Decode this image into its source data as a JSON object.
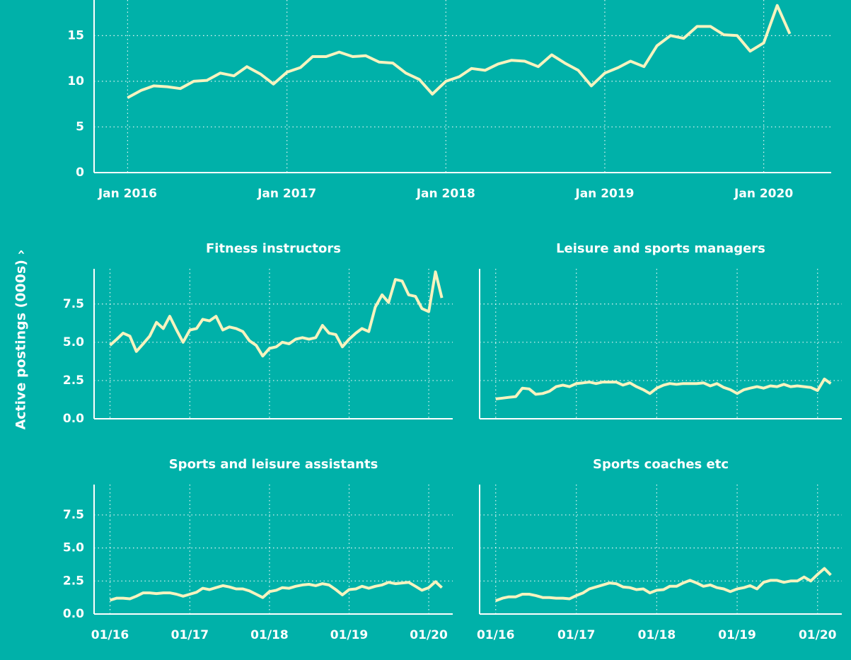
{
  "ylabel": "Active postings (000s) ›",
  "chart_data": [
    {
      "type": "line",
      "xlim": [
        "2015-10-16",
        "2020-06-04"
      ],
      "ylim": [
        0,
        18.9
      ],
      "yticks": [
        0,
        5,
        10,
        15
      ],
      "xticks": [
        {
          "value": "2016-01",
          "label": "Jan 2016"
        },
        {
          "value": "2017-01",
          "label": "Jan 2017"
        },
        {
          "value": "2018-01",
          "label": "Jan 2018"
        },
        {
          "value": "2019-01",
          "label": "Jan 2019"
        },
        {
          "value": "2020-01",
          "label": "Jan 2020"
        }
      ],
      "grid": true,
      "color": "#f6f3bf",
      "x": [
        "2016-01",
        "2016-02",
        "2016-03",
        "2016-04",
        "2016-05",
        "2016-06",
        "2016-07",
        "2016-08",
        "2016-09",
        "2016-10",
        "2016-11",
        "2016-12",
        "2017-01",
        "2017-02",
        "2017-03",
        "2017-04",
        "2017-05",
        "2017-06",
        "2017-07",
        "2017-08",
        "2017-09",
        "2017-10",
        "2017-11",
        "2017-12",
        "2018-01",
        "2018-02",
        "2018-03",
        "2018-04",
        "2018-05",
        "2018-06",
        "2018-07",
        "2018-08",
        "2018-09",
        "2018-10",
        "2018-11",
        "2018-12",
        "2019-01",
        "2019-02",
        "2019-03",
        "2019-04",
        "2019-05",
        "2019-06",
        "2019-07",
        "2019-08",
        "2019-09",
        "2019-10",
        "2019-11",
        "2019-12",
        "2020-01",
        "2020-02",
        "2020-03"
      ],
      "values": [
        8.2,
        9.0,
        9.5,
        9.4,
        9.2,
        10.0,
        10.1,
        10.9,
        10.6,
        11.6,
        10.8,
        9.7,
        11.0,
        11.5,
        12.7,
        12.7,
        13.2,
        12.7,
        12.8,
        12.1,
        12.0,
        10.9,
        10.2,
        8.6,
        10.0,
        10.5,
        11.4,
        11.2,
        11.9,
        12.3,
        12.2,
        11.6,
        12.9,
        12.0,
        11.2,
        9.5,
        10.9,
        11.5,
        12.2,
        11.6,
        13.9,
        15.0,
        14.7,
        16.0,
        16.0,
        15.1,
        15.0,
        13.3,
        14.2,
        18.3,
        15.2
      ]
    },
    {
      "type": "line",
      "title": "Fitness instructors",
      "xlim": [
        "2015-10-20",
        "2020-04-20"
      ],
      "ylim": [
        0,
        9.8
      ],
      "yticks": [
        {
          "value": 0,
          "label": "0.0"
        },
        2.5,
        {
          "value": 5,
          "label": "5.0"
        },
        7.5
      ],
      "xticks": [
        "2016-01",
        "2017-01",
        "2018-01",
        "2019-01",
        "2020-01"
      ],
      "xtick_labels": false,
      "grid": true,
      "color": "#f6f3bf",
      "x": [
        "2016-01",
        "2016-02",
        "2016-03",
        "2016-04",
        "2016-05",
        "2016-06",
        "2016-07",
        "2016-08",
        "2016-09",
        "2016-10",
        "2016-11",
        "2016-12",
        "2017-01",
        "2017-02",
        "2017-03",
        "2017-04",
        "2017-05",
        "2017-06",
        "2017-07",
        "2017-08",
        "2017-09",
        "2017-10",
        "2017-11",
        "2017-12",
        "2018-01",
        "2018-02",
        "2018-03",
        "2018-04",
        "2018-05",
        "2018-06",
        "2018-07",
        "2018-08",
        "2018-09",
        "2018-10",
        "2018-11",
        "2018-12",
        "2019-01",
        "2019-02",
        "2019-03",
        "2019-04",
        "2019-05",
        "2019-06",
        "2019-07",
        "2019-08",
        "2019-09",
        "2019-10",
        "2019-11",
        "2019-12",
        "2020-01",
        "2020-02",
        "2020-03"
      ],
      "values": [
        4.8,
        5.2,
        5.6,
        5.4,
        4.4,
        4.9,
        5.4,
        6.3,
        5.9,
        6.7,
        5.8,
        5.0,
        5.8,
        5.9,
        6.5,
        6.4,
        6.7,
        5.8,
        6.0,
        5.9,
        5.7,
        5.1,
        4.8,
        4.1,
        4.6,
        4.7,
        5.0,
        4.9,
        5.2,
        5.3,
        5.2,
        5.3,
        6.1,
        5.6,
        5.5,
        4.7,
        5.2,
        5.6,
        5.9,
        5.7,
        7.3,
        8.1,
        7.6,
        9.1,
        9.0,
        8.1,
        8.0,
        7.2,
        7.0,
        9.6,
        7.9
      ]
    },
    {
      "type": "line",
      "title": "Leisure and sports managers",
      "xlim": [
        "2015-10-20",
        "2020-04-20"
      ],
      "ylim": [
        0,
        9.8
      ],
      "yticks": [
        0,
        2.5,
        5,
        7.5
      ],
      "ytick_labels": false,
      "xticks": [
        "2016-01",
        "2017-01",
        "2018-01",
        "2019-01",
        "2020-01"
      ],
      "xtick_labels": false,
      "grid": true,
      "color": "#f6f3bf",
      "x": [
        "2016-01",
        "2016-02",
        "2016-03",
        "2016-04",
        "2016-05",
        "2016-06",
        "2016-07",
        "2016-08",
        "2016-09",
        "2016-10",
        "2016-11",
        "2016-12",
        "2017-01",
        "2017-02",
        "2017-03",
        "2017-04",
        "2017-05",
        "2017-06",
        "2017-07",
        "2017-08",
        "2017-09",
        "2017-10",
        "2017-11",
        "2017-12",
        "2018-01",
        "2018-02",
        "2018-03",
        "2018-04",
        "2018-05",
        "2018-06",
        "2018-07",
        "2018-08",
        "2018-09",
        "2018-10",
        "2018-11",
        "2018-12",
        "2019-01",
        "2019-02",
        "2019-03",
        "2019-04",
        "2019-05",
        "2019-06",
        "2019-07",
        "2019-08",
        "2019-09",
        "2019-10",
        "2019-11",
        "2019-12",
        "2020-01",
        "2020-02",
        "2020-03"
      ],
      "values": [
        1.3,
        1.35,
        1.4,
        1.45,
        2.0,
        1.95,
        1.6,
        1.65,
        1.8,
        2.1,
        2.2,
        2.1,
        2.3,
        2.35,
        2.4,
        2.3,
        2.4,
        2.4,
        2.4,
        2.2,
        2.35,
        2.1,
        1.9,
        1.65,
        2.0,
        2.2,
        2.3,
        2.25,
        2.3,
        2.3,
        2.3,
        2.35,
        2.15,
        2.3,
        2.05,
        1.9,
        1.65,
        1.9,
        2.0,
        2.1,
        2.0,
        2.15,
        2.1,
        2.25,
        2.1,
        2.15,
        2.1,
        2.05,
        1.85,
        2.6,
        2.3
      ]
    },
    {
      "type": "line",
      "title": "Sports and leisure assistants",
      "xlim": [
        "2015-10-20",
        "2020-04-20"
      ],
      "ylim": [
        0,
        9.8
      ],
      "yticks": [
        {
          "value": 0,
          "label": "0.0"
        },
        2.5,
        {
          "value": 5,
          "label": "5.0"
        },
        7.5
      ],
      "xticks": [
        {
          "value": "2016-01",
          "label": "01/16"
        },
        {
          "value": "2017-01",
          "label": "01/17"
        },
        {
          "value": "2018-01",
          "label": "01/18"
        },
        {
          "value": "2019-01",
          "label": "01/19"
        },
        {
          "value": "2020-01",
          "label": "01/20"
        }
      ],
      "grid": true,
      "color": "#f6f3bf",
      "x": [
        "2016-01",
        "2016-02",
        "2016-03",
        "2016-04",
        "2016-05",
        "2016-06",
        "2016-07",
        "2016-08",
        "2016-09",
        "2016-10",
        "2016-11",
        "2016-12",
        "2017-01",
        "2017-02",
        "2017-03",
        "2017-04",
        "2017-05",
        "2017-06",
        "2017-07",
        "2017-08",
        "2017-09",
        "2017-10",
        "2017-11",
        "2017-12",
        "2018-01",
        "2018-02",
        "2018-03",
        "2018-04",
        "2018-05",
        "2018-06",
        "2018-07",
        "2018-08",
        "2018-09",
        "2018-10",
        "2018-11",
        "2018-12",
        "2019-01",
        "2019-02",
        "2019-03",
        "2019-04",
        "2019-05",
        "2019-06",
        "2019-07",
        "2019-08",
        "2019-09",
        "2019-10",
        "2019-11",
        "2019-12",
        "2020-01",
        "2020-02",
        "2020-03"
      ],
      "values": [
        1.05,
        1.2,
        1.2,
        1.15,
        1.35,
        1.6,
        1.6,
        1.55,
        1.6,
        1.6,
        1.5,
        1.35,
        1.5,
        1.65,
        1.95,
        1.85,
        2.0,
        2.15,
        2.05,
        1.9,
        1.9,
        1.75,
        1.5,
        1.25,
        1.7,
        1.8,
        2.0,
        1.95,
        2.1,
        2.2,
        2.25,
        2.15,
        2.3,
        2.2,
        1.85,
        1.45,
        1.85,
        1.9,
        2.1,
        1.95,
        2.1,
        2.2,
        2.4,
        2.3,
        2.35,
        2.4,
        2.1,
        1.8,
        2.0,
        2.45,
        2.0
      ]
    },
    {
      "type": "line",
      "title": "Sports coaches etc",
      "xlim": [
        "2015-10-20",
        "2020-04-20"
      ],
      "ylim": [
        0,
        9.8
      ],
      "yticks": [
        0,
        2.5,
        5,
        7.5
      ],
      "ytick_labels": false,
      "xticks": [
        {
          "value": "2016-01",
          "label": "01/16"
        },
        {
          "value": "2017-01",
          "label": "01/17"
        },
        {
          "value": "2018-01",
          "label": "01/18"
        },
        {
          "value": "2019-01",
          "label": "01/19"
        },
        {
          "value": "2020-01",
          "label": "01/20"
        }
      ],
      "grid": true,
      "color": "#f6f3bf",
      "x": [
        "2016-01",
        "2016-02",
        "2016-03",
        "2016-04",
        "2016-05",
        "2016-06",
        "2016-07",
        "2016-08",
        "2016-09",
        "2016-10",
        "2016-11",
        "2016-12",
        "2017-01",
        "2017-02",
        "2017-03",
        "2017-04",
        "2017-05",
        "2017-06",
        "2017-07",
        "2017-08",
        "2017-09",
        "2017-10",
        "2017-11",
        "2017-12",
        "2018-01",
        "2018-02",
        "2018-03",
        "2018-04",
        "2018-05",
        "2018-06",
        "2018-07",
        "2018-08",
        "2018-09",
        "2018-10",
        "2018-11",
        "2018-12",
        "2019-01",
        "2019-02",
        "2019-03",
        "2019-04",
        "2019-05",
        "2019-06",
        "2019-07",
        "2019-08",
        "2019-09",
        "2019-10",
        "2019-11",
        "2019-12",
        "2020-01",
        "2020-02",
        "2020-03"
      ],
      "values": [
        1.0,
        1.2,
        1.3,
        1.3,
        1.5,
        1.5,
        1.4,
        1.25,
        1.25,
        1.2,
        1.2,
        1.15,
        1.4,
        1.6,
        1.9,
        2.05,
        2.2,
        2.35,
        2.3,
        2.05,
        2.0,
        1.85,
        1.9,
        1.6,
        1.8,
        1.85,
        2.1,
        2.1,
        2.35,
        2.55,
        2.35,
        2.1,
        2.2,
        2.0,
        1.9,
        1.7,
        1.9,
        2.0,
        2.15,
        1.9,
        2.4,
        2.55,
        2.55,
        2.4,
        2.5,
        2.5,
        2.8,
        2.5,
        3.0,
        3.45,
        2.95
      ]
    }
  ]
}
